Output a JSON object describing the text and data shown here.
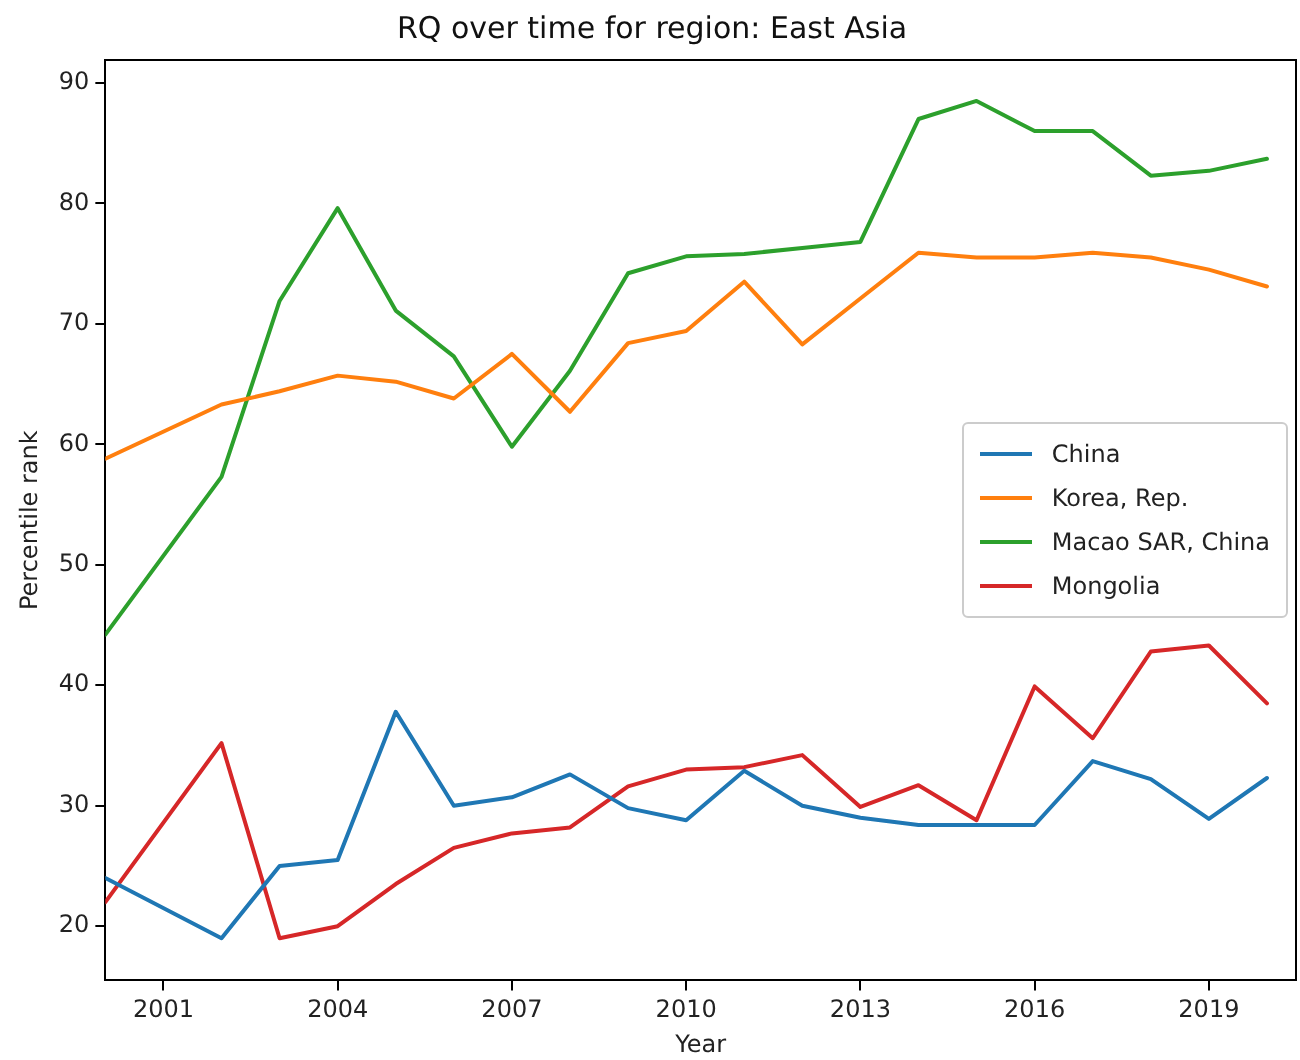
{
  "chart_data": {
    "type": "line",
    "title": "RQ over time for region: East Asia",
    "xlabel": "Year",
    "ylabel": "Percentile rank",
    "x": [
      2000,
      2002,
      2003,
      2004,
      2005,
      2006,
      2007,
      2008,
      2009,
      2010,
      2011,
      2012,
      2013,
      2014,
      2015,
      2016,
      2017,
      2018,
      2019,
      2020
    ],
    "xlim": [
      2000,
      2020.5
    ],
    "xticks": [
      2001,
      2004,
      2007,
      2010,
      2013,
      2016,
      2019
    ],
    "ylim": [
      15.5,
      91.9
    ],
    "yticks": [
      20,
      30,
      40,
      50,
      60,
      70,
      80,
      90
    ],
    "grid": false,
    "legend": "right",
    "marker": "none",
    "line_style": "solid",
    "series": [
      {
        "name": "China",
        "color": "#1f77b4",
        "values": [
          24,
          19,
          25,
          25.5,
          37.8,
          30,
          30.7,
          32.6,
          29.8,
          28.8,
          32.9,
          30,
          29,
          28.4,
          28.4,
          28.4,
          33.7,
          32.2,
          28.9,
          32.3
        ]
      },
      {
        "name": "Korea, Rep.",
        "color": "#ff7f0e",
        "values": [
          58.8,
          63.3,
          64.4,
          65.7,
          65.2,
          63.8,
          67.5,
          62.7,
          68.4,
          69.4,
          73.5,
          68.3,
          72.1,
          75.9,
          75.5,
          75.5,
          75.9,
          75.5,
          74.5,
          73.1
        ]
      },
      {
        "name": "Macao SAR, China",
        "color": "#2ca02c",
        "values": [
          44.2,
          57.3,
          71.9,
          79.6,
          71.1,
          67.3,
          59.8,
          66.1,
          74.2,
          75.6,
          75.8,
          76.3,
          76.8,
          87,
          88.5,
          86,
          86,
          82.3,
          82.7,
          83.7
        ]
      },
      {
        "name": "Mongolia",
        "color": "#d62728",
        "values": [
          22,
          35.2,
          19,
          20,
          23.5,
          26.5,
          27.7,
          28.2,
          31.6,
          33,
          33.2,
          34.2,
          29.9,
          31.7,
          28.8,
          39.9,
          35.6,
          42.8,
          43.3,
          38.5
        ]
      }
    ]
  }
}
